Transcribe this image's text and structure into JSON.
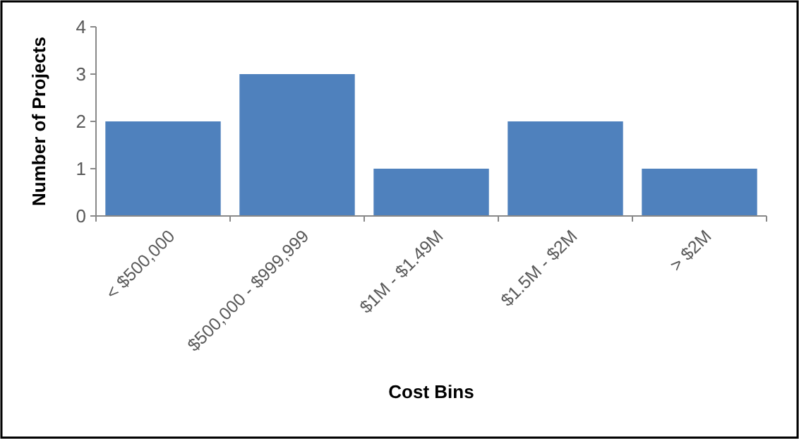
{
  "chart_data": {
    "type": "bar",
    "xlabel": "Cost Bins",
    "ylabel": "Number of Projects",
    "categories": [
      "< $500,000",
      "$500,000 - $999,999",
      "$1M - $1.49M",
      "$1.5M - $2M",
      "> $2M"
    ],
    "values": [
      2,
      3,
      1,
      2,
      1
    ],
    "color": "#4f81bd",
    "ylim": [
      0,
      4
    ],
    "yticks": [
      0,
      1,
      2,
      3,
      4
    ],
    "grid": false
  }
}
